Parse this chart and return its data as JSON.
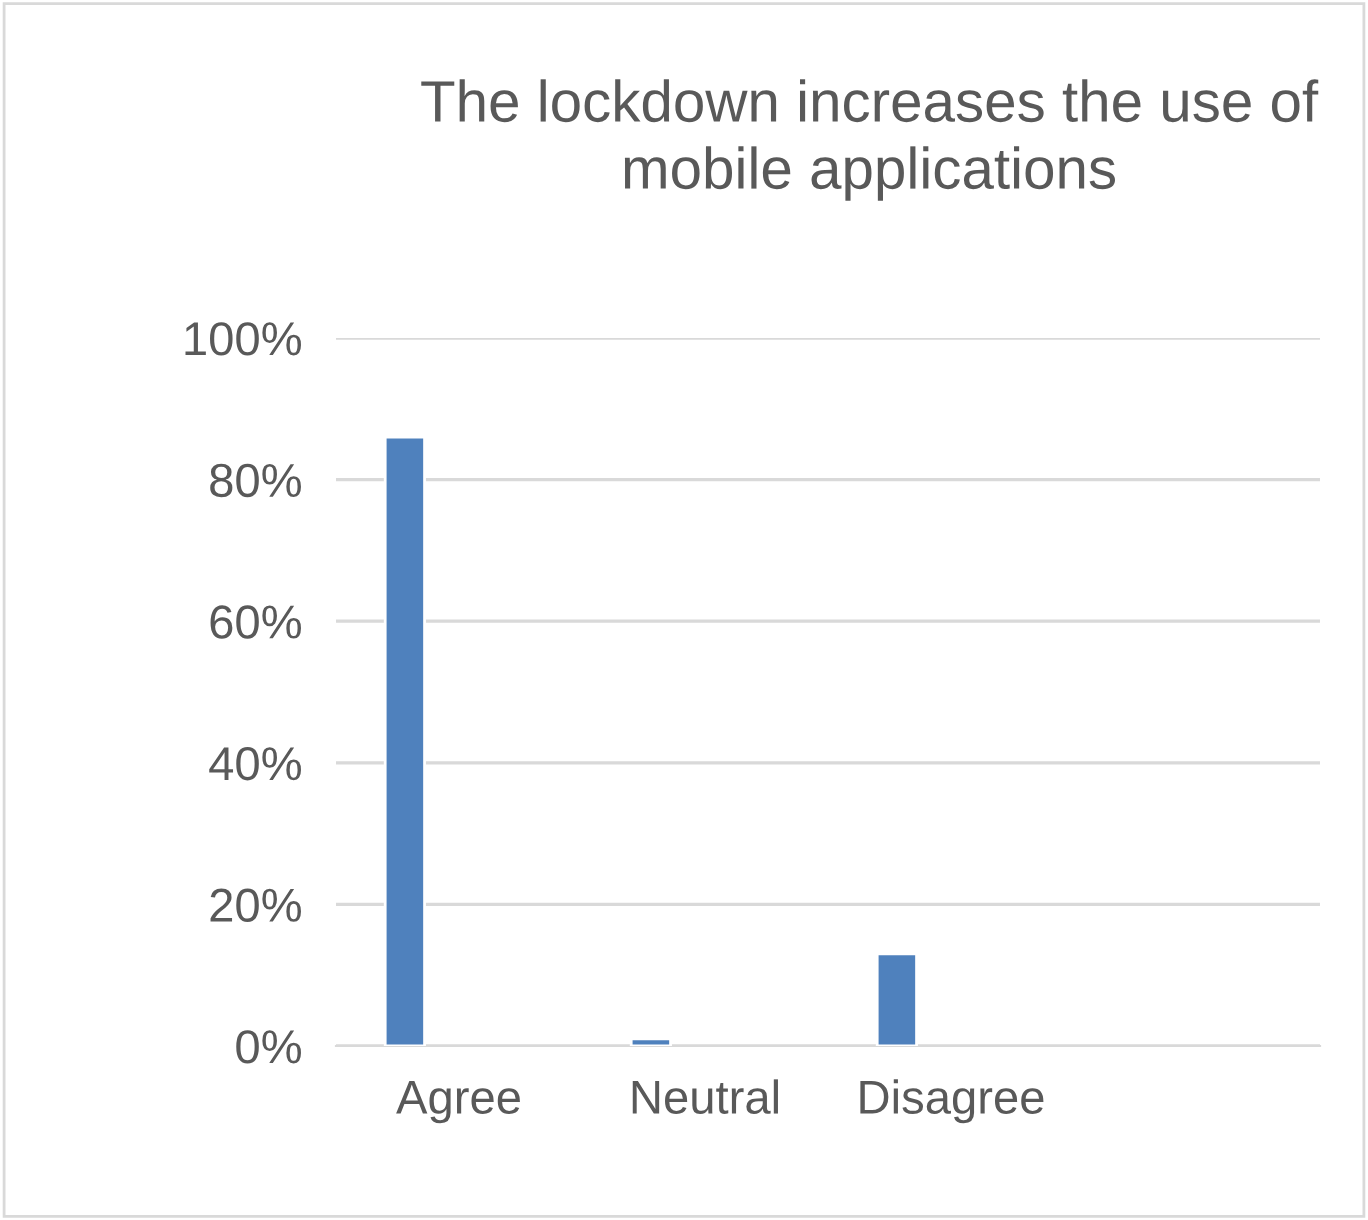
{
  "chart_data": {
    "type": "bar",
    "title": "The lockdown increases the use of\nmobile applications",
    "categories": [
      "Agree",
      "Neutral",
      "Disagree",
      null
    ],
    "values": [
      86,
      1,
      13,
      null
    ],
    "color": "#4f81bd",
    "ylim": [
      0,
      100
    ],
    "yticks": [
      {
        "value": 0,
        "label": "0%"
      },
      {
        "value": 20,
        "label": "20%"
      },
      {
        "value": 40,
        "label": "40%"
      },
      {
        "value": 60,
        "label": "60%"
      },
      {
        "value": 80,
        "label": "80%"
      },
      {
        "value": 100,
        "label": "100%"
      }
    ],
    "grid": "y",
    "legend": false
  }
}
